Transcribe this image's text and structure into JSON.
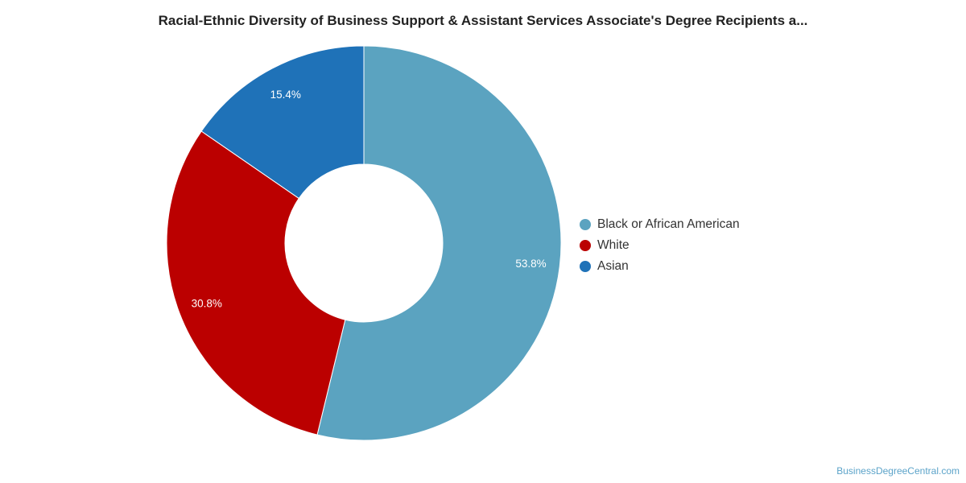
{
  "chart_data": {
    "type": "pie",
    "title": "Racial-Ethnic Diversity of Business Support & Assistant Services Associate's Degree Recipients a...",
    "donut": true,
    "slices": [
      {
        "label": "Black or African American",
        "value": 53.8,
        "display": "53.8%",
        "color": "#5ba3c0"
      },
      {
        "label": "White",
        "value": 30.8,
        "display": "30.8%",
        "color": "#bb0000"
      },
      {
        "label": "Asian",
        "value": 15.4,
        "display": "15.4%",
        "color": "#1f72b8"
      }
    ],
    "legend_position": "right"
  },
  "credit": "BusinessDegreeCentral.com"
}
